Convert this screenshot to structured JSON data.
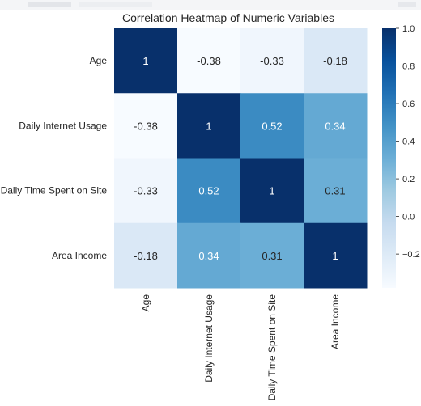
{
  "chart_data": {
    "type": "heatmap",
    "title": "Correlation Heatmap of Numeric Variables",
    "rows": [
      "Age",
      "Daily Internet Usage",
      "Daily Time Spent on Site",
      "Area Income"
    ],
    "columns": [
      "Age",
      "Daily Internet Usage",
      "Daily Time Spent on Site",
      "Area Income"
    ],
    "values": [
      [
        1,
        -0.38,
        -0.33,
        -0.18
      ],
      [
        -0.38,
        1,
        0.52,
        0.34
      ],
      [
        -0.33,
        0.52,
        1,
        0.31
      ],
      [
        -0.18,
        0.34,
        0.31,
        1
      ]
    ],
    "colormap": "Blues",
    "color_range": [
      -0.38,
      1.0
    ],
    "colorbar": {
      "ticks": [
        1.0,
        0.8,
        0.6,
        0.4,
        0.2,
        0.0,
        -0.2
      ],
      "tick_labels": [
        "1.0",
        "0.8",
        "0.6",
        "0.4",
        "0.2",
        "0.0",
        "−0.2"
      ],
      "placement": "right"
    },
    "annotated": true,
    "xlabel": "",
    "ylabel": ""
  },
  "colors": {
    "low": "#f7fbff",
    "high": "#08306b",
    "text_dark": "#262626",
    "text_light": "#ffffff"
  }
}
